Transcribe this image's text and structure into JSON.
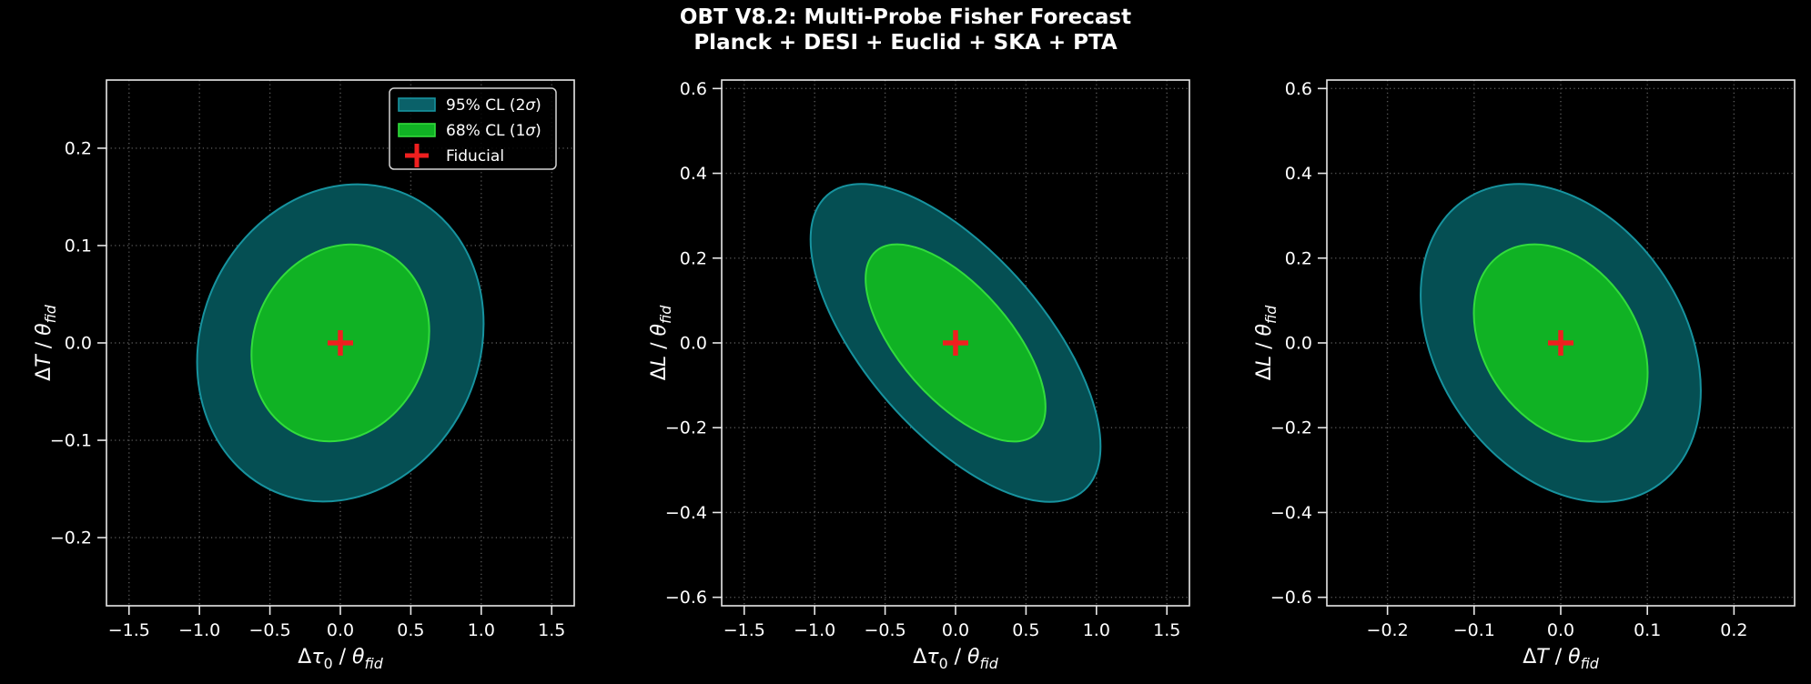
{
  "title": {
    "line1": "OBT V8.2: Multi-Probe Fisher Forecast",
    "line2": "Planck + DESI + Euclid + SKA + PTA"
  },
  "legend": {
    "items": [
      {
        "swatch": "ellipse-95-swatch",
        "label": "95% CL (2σ)"
      },
      {
        "swatch": "ellipse-68-swatch",
        "label": "68% CL (1σ)"
      },
      {
        "swatch": "fiducial-marker-swatch",
        "label": "Fiducial"
      }
    ]
  },
  "colors": {
    "background": "#000000",
    "text": "#ffffff",
    "spine": "#e8e8e8",
    "grid": "#585858",
    "fill_95": "#054f53",
    "edge_95": "#17939f",
    "legend_95": "#0a6169",
    "fill_68": "#10b224",
    "edge_68": "#32dc3c",
    "fiducial": "#ef1f1f",
    "legend_border": "#d4d4d4"
  },
  "chart_data": {
    "type": "confidence-ellipses",
    "title": "OBT V8.2: Multi-Probe Fisher Forecast — Planck + DESI + Euclid + SKA + PTA",
    "grid": "dotted, major ticks only",
    "legend_position": "upper right of first panel",
    "confidence_levels": [
      {
        "label": "95% CL (2σ)",
        "scale_factor": 2.45
      },
      {
        "label": "68% CL (1σ)",
        "scale_factor": 1.52
      }
    ],
    "panels": [
      {
        "xlabel": "Δτ_0 / θ_fid",
        "ylabel": "ΔT / θ_fid",
        "xlim": [
          -1.66,
          1.66
        ],
        "ylim": [
          -0.27,
          0.27
        ],
        "xticks": [
          -1.5,
          -1.0,
          -0.5,
          0.0,
          0.5,
          1.0,
          1.5
        ],
        "yticks": [
          -0.2,
          -0.1,
          0.0,
          0.1,
          0.2
        ],
        "xtick_decimals": 1,
        "ytick_decimals": 1,
        "fiducial": [
          0,
          0
        ],
        "ellipses": {
          "sigma_x": 0.415,
          "sigma_y": 0.0665,
          "rho": 0.12,
          "k68": 1.52,
          "k95": 2.45
        }
      },
      {
        "xlabel": "Δτ_0 / θ_fid",
        "ylabel": "ΔL / θ_fid",
        "xlim": [
          -1.66,
          1.66
        ],
        "ylim": [
          -0.62,
          0.62
        ],
        "xticks": [
          -1.5,
          -1.0,
          -0.5,
          0.0,
          0.5,
          1.0,
          1.5
        ],
        "yticks": [
          -0.6,
          -0.4,
          -0.2,
          0.0,
          0.2,
          0.4,
          0.6
        ],
        "xtick_decimals": 1,
        "ytick_decimals": 1,
        "fiducial": [
          0,
          0
        ],
        "ellipses": {
          "sigma_x": 0.42,
          "sigma_y": 0.153,
          "rho": -0.65,
          "k68": 1.52,
          "k95": 2.45
        }
      },
      {
        "xlabel": "ΔT / θ_fid",
        "ylabel": "ΔL / θ_fid",
        "xlim": [
          -0.27,
          0.27
        ],
        "ylim": [
          -0.62,
          0.62
        ],
        "xticks": [
          -0.2,
          -0.1,
          0.0,
          0.1,
          0.2
        ],
        "yticks": [
          -0.6,
          -0.4,
          -0.2,
          0.0,
          0.2,
          0.4,
          0.6
        ],
        "xtick_decimals": 1,
        "ytick_decimals": 1,
        "fiducial": [
          0,
          0
        ],
        "ellipses": {
          "sigma_x": 0.066,
          "sigma_y": 0.153,
          "rho": -0.3,
          "k68": 1.52,
          "k95": 2.45
        }
      }
    ]
  }
}
